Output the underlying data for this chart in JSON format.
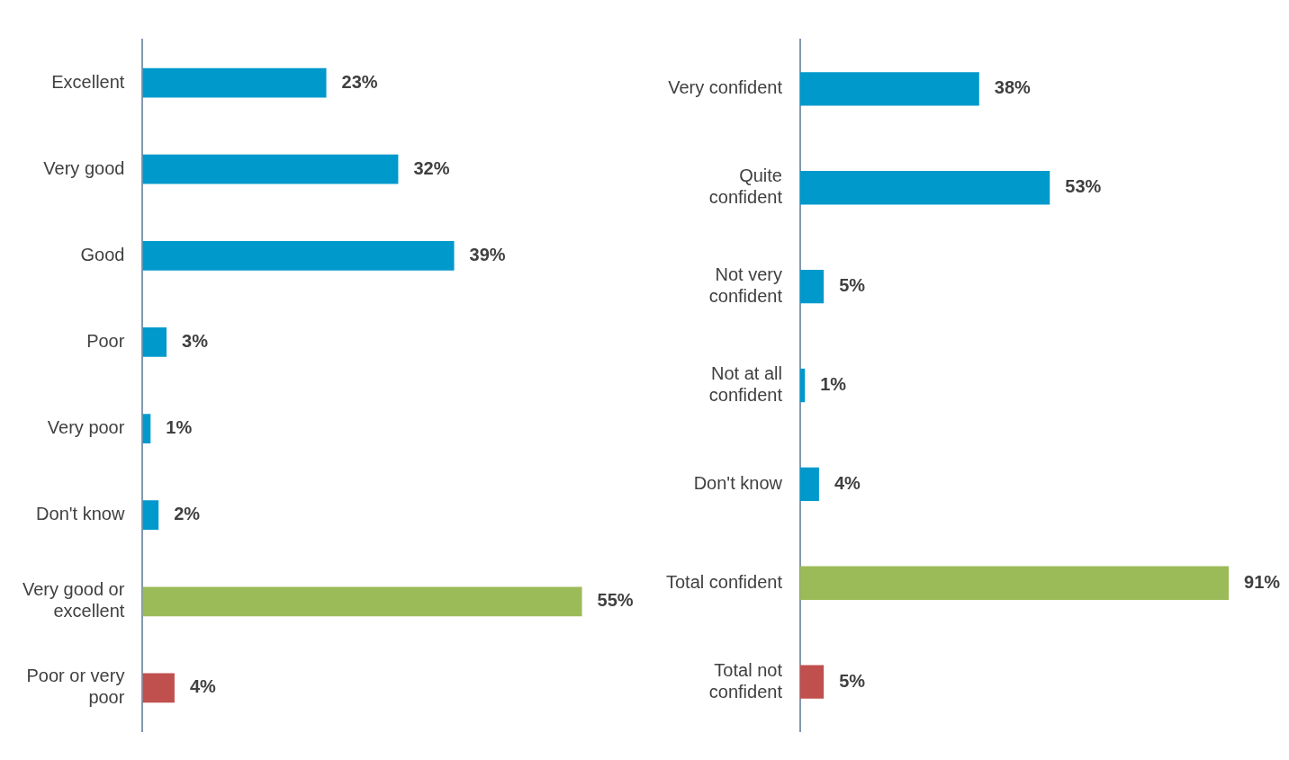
{
  "chart_data": [
    {
      "type": "bar",
      "orientation": "horizontal",
      "categories": [
        "Excellent",
        "Very good",
        "Good",
        "Poor",
        "Very poor",
        "Don't know",
        "Very good or excellent",
        "Poor or very poor"
      ],
      "values": [
        23,
        32,
        39,
        3,
        1,
        2,
        55,
        4
      ],
      "colors": [
        "#0099cc",
        "#0099cc",
        "#0099cc",
        "#0099cc",
        "#0099cc",
        "#0099cc",
        "#9bbb59",
        "#c0504d"
      ],
      "value_labels": [
        "23%",
        "32%",
        "39%",
        "3%",
        "1%",
        "2%",
        "55%",
        "4%"
      ]
    },
    {
      "type": "bar",
      "orientation": "horizontal",
      "categories": [
        "Very confident",
        "Quite confident",
        "Not very confident",
        "Not at all confident",
        "Don't know",
        "Total confident",
        "Total not confident"
      ],
      "values": [
        38,
        53,
        5,
        1,
        4,
        91,
        5
      ],
      "colors": [
        "#0099cc",
        "#0099cc",
        "#0099cc",
        "#0099cc",
        "#0099cc",
        "#9bbb59",
        "#c0504d"
      ],
      "value_labels": [
        "38%",
        "53%",
        "5%",
        "1%",
        "4%",
        "91%",
        "5%"
      ]
    }
  ]
}
